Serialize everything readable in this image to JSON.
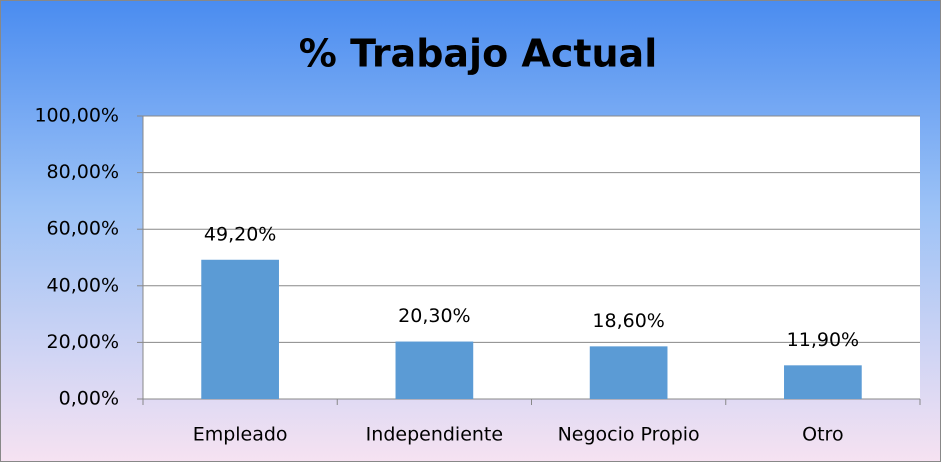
{
  "chart_data": {
    "type": "bar",
    "title": "% Trabajo Actual",
    "categories": [
      "Empleado",
      "Independiente",
      "Negocio Propio",
      "Otro"
    ],
    "values": [
      49.2,
      20.3,
      18.6,
      11.9
    ],
    "value_labels": [
      "49,20%",
      "20,30%",
      "18,60%",
      "11,90%"
    ],
    "color": "#5b9bd5",
    "ylim": [
      0,
      100
    ],
    "yticks": [
      {
        "value": 0,
        "label": "0,00%"
      },
      {
        "value": 20,
        "label": "20,00%"
      },
      {
        "value": 40,
        "label": "40,00%"
      },
      {
        "value": 60,
        "label": "60,00%"
      },
      {
        "value": 80,
        "label": "80,00%"
      },
      {
        "value": 100,
        "label": "100,00%"
      }
    ],
    "grid": true
  }
}
